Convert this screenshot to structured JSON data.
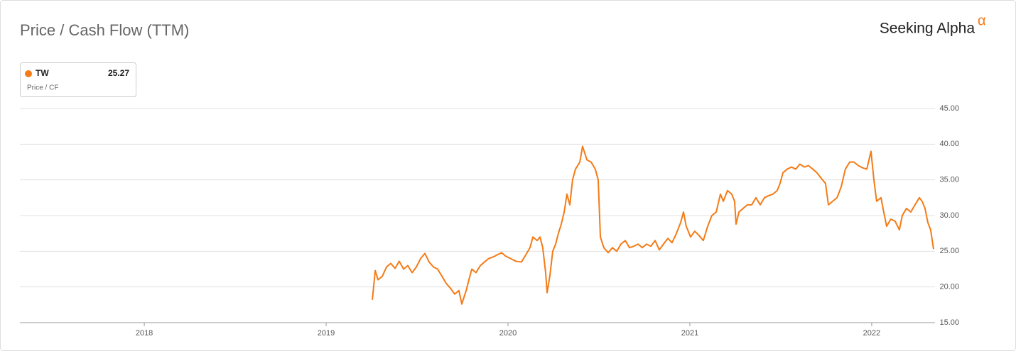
{
  "chart_data": {
    "type": "line",
    "title": "Price / Cash Flow (TTM)",
    "brand": "Seeking Alpha",
    "brand_mark": "α",
    "metric": "Price / CF",
    "last_value": 25.27,
    "x": [
      2019.254,
      2019.27,
      2019.285,
      2019.309,
      2019.332,
      2019.355,
      2019.379,
      2019.402,
      2019.426,
      2019.449,
      2019.473,
      2019.496,
      2019.52,
      2019.543,
      2019.566,
      2019.59,
      2019.613,
      2019.637,
      2019.66,
      2019.684,
      2019.707,
      2019.73,
      2019.746,
      2019.77,
      2019.785,
      2019.801,
      2019.824,
      2019.848,
      2019.871,
      2019.895,
      2019.918,
      2019.941,
      2019.965,
      2019.988,
      2020.012,
      2020.043,
      2020.074,
      2020.098,
      2020.121,
      2020.137,
      2020.16,
      2020.176,
      2020.191,
      2020.207,
      2020.215,
      2020.23,
      2020.246,
      2020.262,
      2020.277,
      2020.293,
      2020.309,
      2020.324,
      2020.34,
      2020.355,
      2020.371,
      2020.395,
      2020.41,
      2020.434,
      2020.457,
      2020.48,
      2020.496,
      2020.508,
      2020.527,
      2020.551,
      2020.574,
      2020.598,
      2020.621,
      2020.645,
      2020.668,
      2020.691,
      2020.715,
      2020.738,
      2020.762,
      2020.785,
      2020.809,
      2020.832,
      2020.855,
      2020.879,
      2020.902,
      2020.926,
      2020.949,
      2020.965,
      2020.98,
      2021.004,
      2021.027,
      2021.051,
      2021.074,
      2021.098,
      2021.121,
      2021.145,
      2021.168,
      2021.184,
      2021.207,
      2021.23,
      2021.246,
      2021.254,
      2021.27,
      2021.293,
      2021.316,
      2021.34,
      2021.363,
      2021.387,
      2021.41,
      2021.434,
      2021.457,
      2021.48,
      2021.496,
      2021.512,
      2021.535,
      2021.559,
      2021.582,
      2021.605,
      2021.629,
      2021.652,
      2021.676,
      2021.699,
      2021.723,
      2021.746,
      2021.762,
      2021.785,
      2021.809,
      2021.832,
      2021.855,
      2021.879,
      2021.902,
      2021.926,
      2021.949,
      2021.973,
      2021.996,
      2022.012,
      2022.027,
      2022.051,
      2022.066,
      2022.082,
      2022.105,
      2022.129,
      2022.152,
      2022.168,
      2022.191,
      2022.215,
      2022.238,
      2022.262,
      2022.277,
      2022.293,
      2022.309,
      2022.324,
      2022.34
    ],
    "series": [
      {
        "name": "TW",
        "color": "#f47b16",
        "values": [
          18.2,
          22.3,
          21.0,
          21.5,
          22.8,
          23.3,
          22.6,
          23.6,
          22.5,
          23.0,
          22.0,
          22.8,
          24.0,
          24.7,
          23.5,
          22.8,
          22.5,
          21.5,
          20.5,
          19.8,
          19.0,
          19.5,
          17.6,
          19.5,
          21.0,
          22.5,
          22.0,
          23.0,
          23.5,
          24.0,
          24.2,
          24.5,
          24.8,
          24.3,
          24.0,
          23.6,
          23.5,
          24.5,
          25.5,
          27.0,
          26.5,
          27.0,
          25.5,
          22.0,
          19.2,
          21.5,
          25.0,
          26.0,
          27.5,
          28.8,
          30.5,
          33.0,
          31.5,
          35.0,
          36.5,
          37.5,
          39.7,
          37.8,
          37.5,
          36.5,
          35.0,
          27.0,
          25.5,
          24.8,
          25.5,
          25.0,
          26.0,
          26.5,
          25.5,
          25.7,
          26.0,
          25.5,
          26.0,
          25.7,
          26.5,
          25.2,
          26.0,
          26.8,
          26.2,
          27.5,
          29.0,
          30.5,
          28.5,
          27.0,
          27.8,
          27.2,
          26.5,
          28.5,
          30.0,
          30.5,
          33.0,
          32.0,
          33.5,
          33.0,
          32.0,
          28.8,
          30.5,
          31.0,
          31.5,
          31.5,
          32.5,
          31.5,
          32.5,
          32.8,
          33.0,
          33.5,
          34.5,
          36.0,
          36.5,
          36.8,
          36.5,
          37.2,
          36.8,
          37.0,
          36.5,
          36.0,
          35.2,
          34.5,
          31.5,
          32.0,
          32.5,
          34.0,
          36.5,
          37.5,
          37.5,
          37.0,
          36.7,
          36.5,
          39.0,
          35.0,
          32.0,
          32.5,
          30.5,
          28.5,
          29.5,
          29.2,
          28.0,
          30.0,
          31.0,
          30.5,
          31.5,
          32.5,
          32.0,
          31.0,
          29.0,
          28.0,
          25.3
        ]
      }
    ],
    "xlim": [
      2017.316,
      2022.348
    ],
    "xticks": [
      2018,
      2019,
      2020,
      2021,
      2022
    ],
    "ylim": [
      15,
      45
    ],
    "yticks": [
      {
        "value": 15,
        "label": "15.00"
      },
      {
        "value": 20,
        "label": "20.00"
      },
      {
        "value": 25,
        "label": "25.00"
      },
      {
        "value": 30,
        "label": "30.00"
      },
      {
        "value": 35,
        "label": "35.00"
      },
      {
        "value": 40,
        "label": "40.00"
      },
      {
        "value": 45,
        "label": "45.00"
      }
    ],
    "grid": true
  }
}
